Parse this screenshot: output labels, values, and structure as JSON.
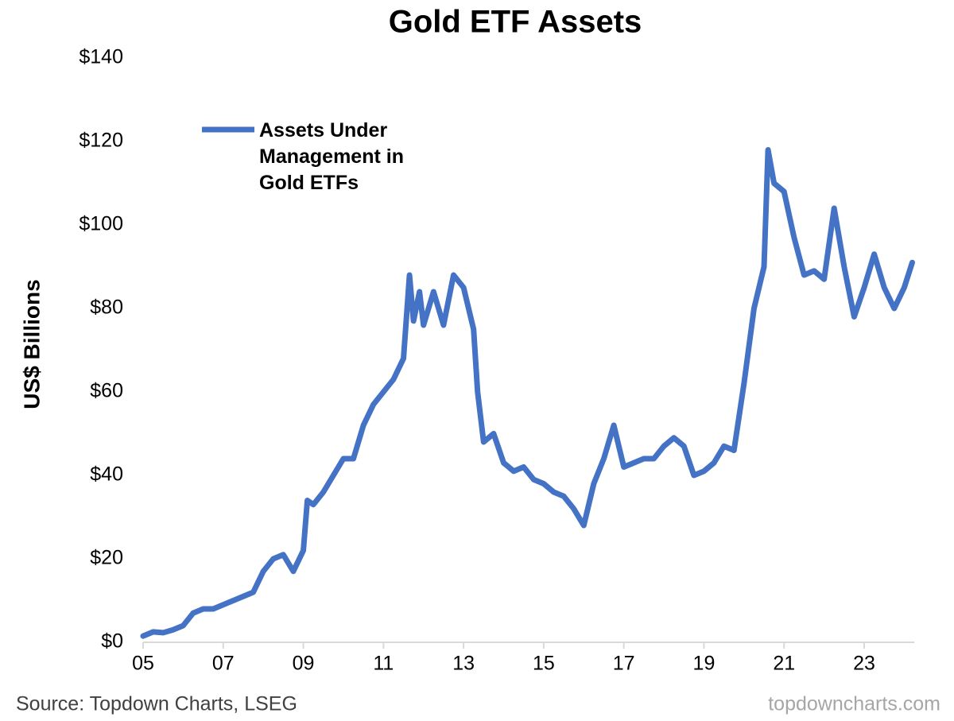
{
  "chart_data": {
    "type": "line",
    "title": "Gold ETF Assets",
    "y_label": "US$ Billions",
    "source": "Source: Topdown Charts, LSEG",
    "watermark": "topdowncharts.com",
    "legend": "upper left",
    "x": [
      2005.0,
      2005.25,
      2005.5,
      2005.75,
      2006.0,
      2006.25,
      2006.5,
      2006.75,
      2007.0,
      2007.25,
      2007.5,
      2007.75,
      2008.0,
      2008.25,
      2008.5,
      2008.75,
      2009.0,
      2009.1,
      2009.25,
      2009.5,
      2009.75,
      2010.0,
      2010.25,
      2010.5,
      2010.75,
      2011.0,
      2011.25,
      2011.5,
      2011.65,
      2011.75,
      2011.9,
      2012.0,
      2012.25,
      2012.5,
      2012.75,
      2013.0,
      2013.25,
      2013.35,
      2013.5,
      2013.75,
      2014.0,
      2014.25,
      2014.5,
      2014.75,
      2015.0,
      2015.25,
      2015.5,
      2015.75,
      2016.0,
      2016.25,
      2016.5,
      2016.75,
      2017.0,
      2017.25,
      2017.5,
      2017.75,
      2018.0,
      2018.25,
      2018.5,
      2018.75,
      2019.0,
      2019.25,
      2019.5,
      2019.75,
      2020.0,
      2020.25,
      2020.5,
      2020.6,
      2020.75,
      2021.0,
      2021.25,
      2021.5,
      2021.75,
      2022.0,
      2022.25,
      2022.5,
      2022.75,
      2023.0,
      2023.25,
      2023.5,
      2023.75,
      2024.0,
      2024.2
    ],
    "series": [
      {
        "name": "Assets Under Management in Gold ETFs",
        "color": "#4472c4",
        "values": [
          1.5,
          2.5,
          2.3,
          3,
          4,
          7,
          8,
          8,
          9,
          10,
          11,
          12,
          17,
          20,
          21,
          17,
          22,
          34,
          33,
          36,
          40,
          44,
          44,
          52,
          57,
          60,
          63,
          68,
          88,
          77,
          84,
          76,
          84,
          76,
          88,
          85,
          75,
          60,
          48,
          50,
          43,
          41,
          42,
          39,
          38,
          36,
          35,
          32,
          28,
          38,
          44,
          52,
          42,
          43,
          44,
          44,
          47,
          49,
          47,
          40,
          41,
          43,
          47,
          46,
          62,
          80,
          90,
          118,
          110,
          108,
          97,
          88,
          89,
          87,
          104,
          90,
          78,
          85,
          93,
          85,
          80,
          85,
          91
        ]
      }
    ],
    "xlim": [
      2005,
      2024.25
    ],
    "xticks": [
      {
        "value": 2005,
        "label": "05"
      },
      {
        "value": 2007,
        "label": "07"
      },
      {
        "value": 2009,
        "label": "09"
      },
      {
        "value": 2011,
        "label": "11"
      },
      {
        "value": 2013,
        "label": "13"
      },
      {
        "value": 2015,
        "label": "15"
      },
      {
        "value": 2017,
        "label": "17"
      },
      {
        "value": 2019,
        "label": "19"
      },
      {
        "value": 2021,
        "label": "21"
      },
      {
        "value": 2023,
        "label": "23"
      }
    ],
    "ylim": [
      0,
      140
    ],
    "yticks": [
      {
        "value": 0,
        "label": "$0"
      },
      {
        "value": 20,
        "label": "$20"
      },
      {
        "value": 40,
        "label": "$40"
      },
      {
        "value": 60,
        "label": "$60"
      },
      {
        "value": 80,
        "label": "$80"
      },
      {
        "value": 100,
        "label": "$100"
      },
      {
        "value": 120,
        "label": "$120"
      },
      {
        "value": 140,
        "label": "$140"
      }
    ]
  }
}
